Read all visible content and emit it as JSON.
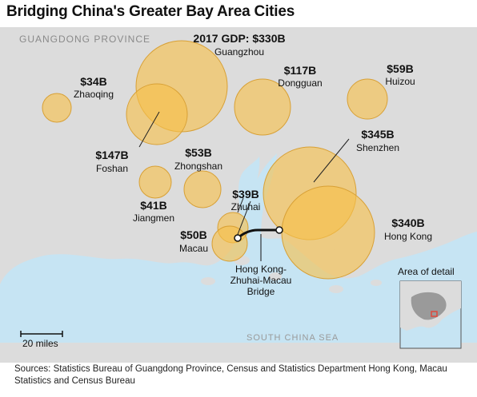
{
  "title": "Bridging China's Greater Bay Area Cities",
  "region_label": "GUANGDONG PROVINCE",
  "sea_label": "SOUTH CHINA SEA",
  "scale_label": "20 miles",
  "inset_label": "Area of detail",
  "bridge_label_lines": [
    "Hong Kong-",
    "Zhuhai-Macau",
    "Bridge"
  ],
  "source_text": "Sources: Statistics Bureau of Guangdong Province, Census and Statistics Department Hong Kong, Macau Statistics and Census Bureau",
  "colors": {
    "land": "#dcdcdc",
    "water": "#c6e4f3",
    "bubble": "#f7c04a",
    "bubble_stroke": "#d8a035"
  },
  "cities": [
    {
      "key": "guangzhou",
      "name": "Guangzhou",
      "gdp_label": "2017 GDP: $330B",
      "gdp_billion_usd": 330
    },
    {
      "key": "dongguan",
      "name": "Dongguan",
      "gdp_label": "$117B",
      "gdp_billion_usd": 117
    },
    {
      "key": "huizou",
      "name": "Huizou",
      "gdp_label": "$59B",
      "gdp_billion_usd": 59
    },
    {
      "key": "zhaoqing",
      "name": "Zhaoqing",
      "gdp_label": "$34B",
      "gdp_billion_usd": 34
    },
    {
      "key": "foshan",
      "name": "Foshan",
      "gdp_label": "$147B",
      "gdp_billion_usd": 147
    },
    {
      "key": "zhongshan",
      "name": "Zhongshan",
      "gdp_label": "$53B",
      "gdp_billion_usd": 53
    },
    {
      "key": "jiangmen",
      "name": "Jiangmen",
      "gdp_label": "$41B",
      "gdp_billion_usd": 41
    },
    {
      "key": "zhuhai",
      "name": "Zhuhai",
      "gdp_label": "$39B",
      "gdp_billion_usd": 39
    },
    {
      "key": "macau",
      "name": "Macau",
      "gdp_label": "$50B",
      "gdp_billion_usd": 50
    },
    {
      "key": "shenzhen",
      "name": "Shenzhen",
      "gdp_label": "$345B",
      "gdp_billion_usd": 345
    },
    {
      "key": "hongkong",
      "name": "Hong Kong",
      "gdp_label": "$340B",
      "gdp_billion_usd": 340
    }
  ]
}
